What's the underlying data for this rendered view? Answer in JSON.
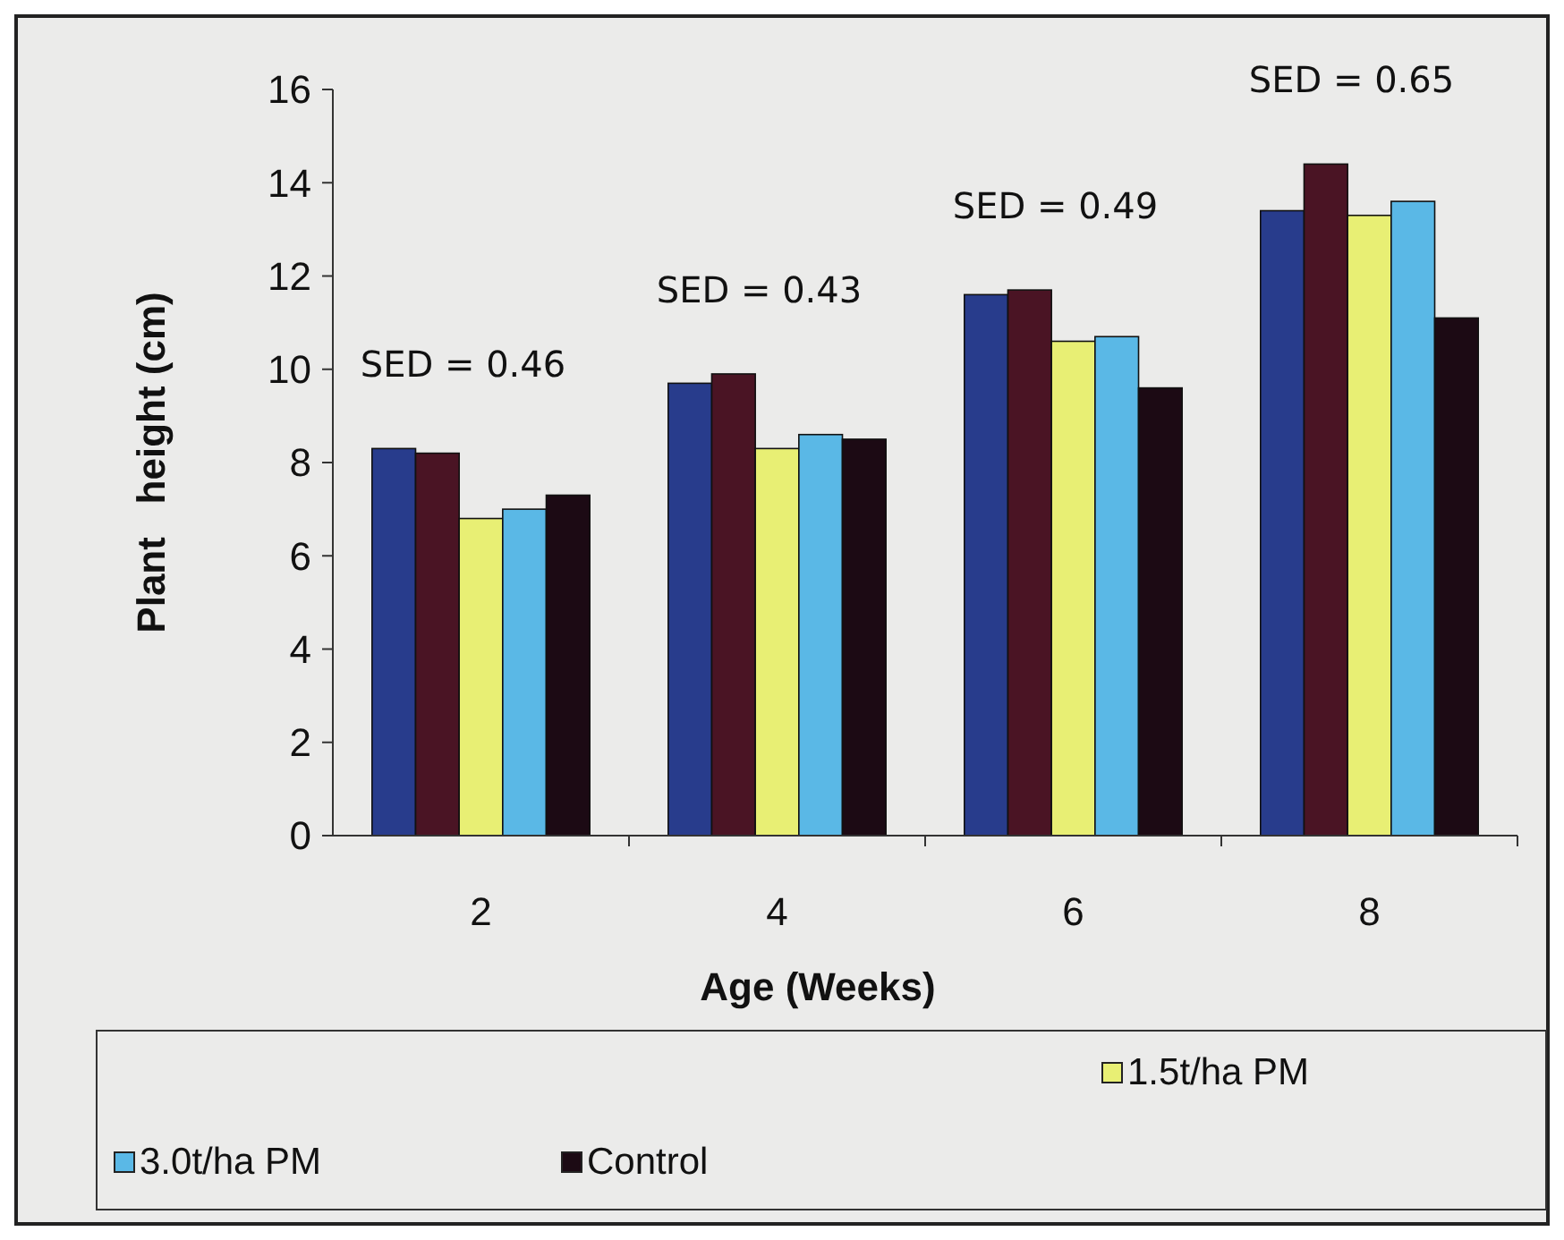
{
  "chart_data": {
    "type": "bar",
    "xlabel": "Age (Weeks)",
    "ylabel": "Plant   height (cm)",
    "categories": [
      "2",
      "4",
      "6",
      "8"
    ],
    "series": [
      {
        "color": "#283c8c",
        "values": [
          8.3,
          9.7,
          11.6,
          13.4
        ]
      },
      {
        "color": "#4a1424",
        "values": [
          8.2,
          9.9,
          11.7,
          14.4
        ]
      },
      {
        "name": "1.5t/ha PM",
        "color": "#e8ef74",
        "values": [
          6.8,
          8.3,
          10.6,
          13.3
        ]
      },
      {
        "name": "3.0t/ha PM",
        "color": "#5ab8e6",
        "values": [
          7.0,
          8.6,
          10.7,
          13.6
        ]
      },
      {
        "name": "Control",
        "color": "#1c0a14",
        "values": [
          7.3,
          8.5,
          9.6,
          11.1
        ]
      }
    ],
    "ylim": [
      0,
      16
    ],
    "yticks": [
      0,
      2,
      4,
      6,
      8,
      10,
      12,
      14,
      16
    ],
    "grid": false,
    "legend": "bottom",
    "annotations": [
      "SED = 0.46",
      "SED = 0.43",
      "SED = 0.49",
      "SED = 0.65"
    ]
  }
}
